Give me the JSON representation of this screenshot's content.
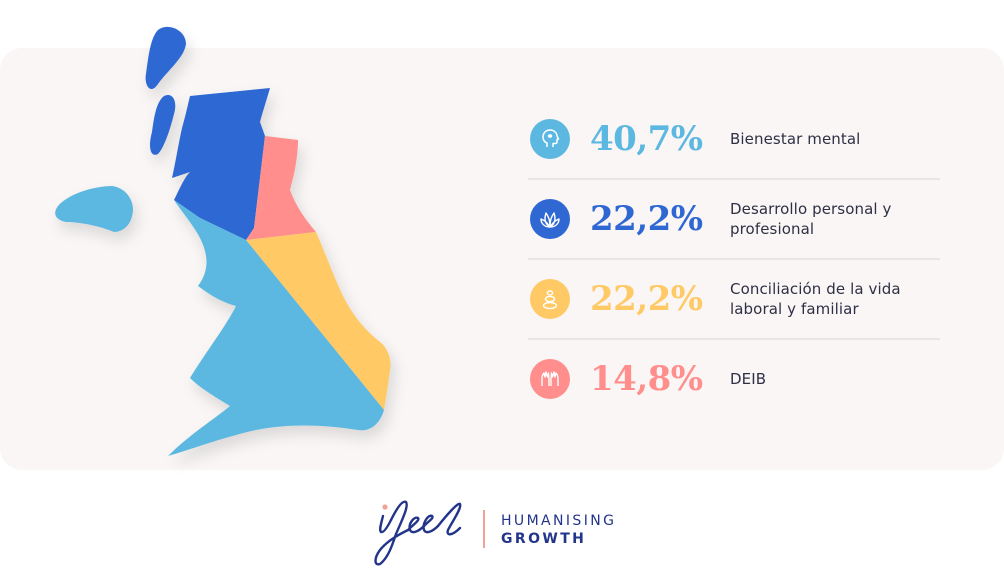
{
  "chart_data": {
    "type": "pie",
    "title": "",
    "slices": [
      {
        "value": 40.7,
        "display": "40,7%",
        "label": "Bienestar mental",
        "color": "#5cb8e0",
        "icon": "head-icon"
      },
      {
        "value": 22.2,
        "display": "22,2%",
        "label": "Desarrollo personal y profesional",
        "color": "#2f67d3",
        "icon": "leaf-icon"
      },
      {
        "value": 22.2,
        "display": "22,2%",
        "label": "Conciliación de la vida laboral y familiar",
        "color": "#ffc966",
        "icon": "balance-stones-icon"
      },
      {
        "value": 14.8,
        "display": "14,8%",
        "label": "DEIB",
        "color": "#ff8e8c",
        "icon": "hands-icon"
      }
    ],
    "shape": "united-kingdom-map",
    "legend": "right"
  },
  "brand": {
    "logo_text": "ifeel",
    "tagline_line1": "HUMANISING",
    "tagline_line2": "GROWTH",
    "logo_color": "#23358a",
    "accent_color": "#f0a394"
  }
}
